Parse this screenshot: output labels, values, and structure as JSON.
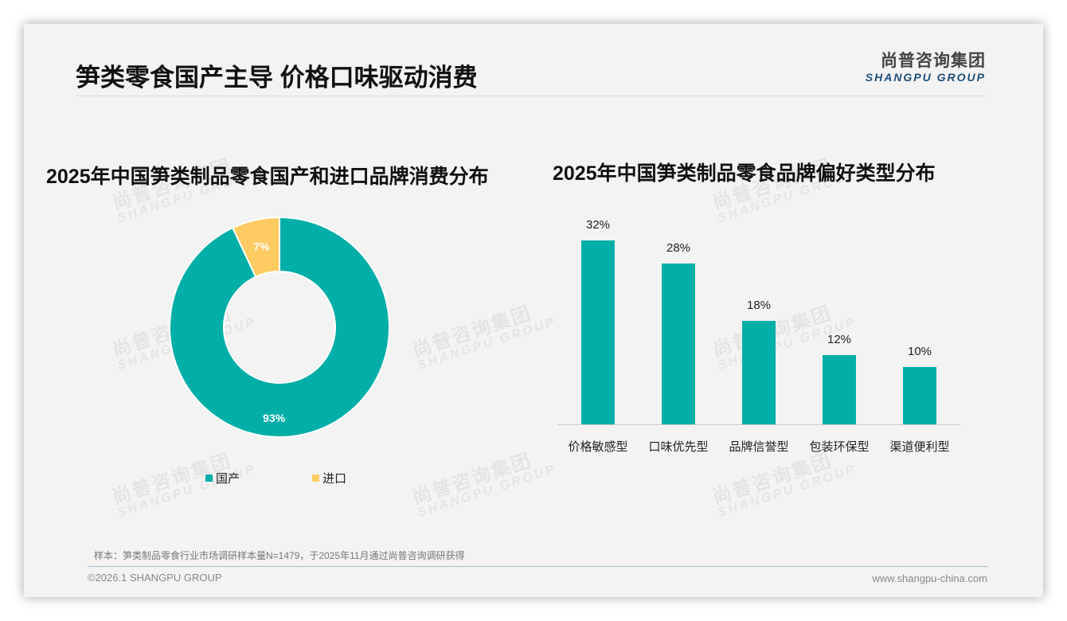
{
  "slide": {
    "title": "笋类零食国产主导 价格口味驱动消费",
    "logo": {
      "cn": "尚普咨询集团",
      "en": "SHANGPU GROUP"
    },
    "watermark": {
      "cn": "尚普咨询集团",
      "en": "SHANGPU GROUP"
    },
    "note": "样本：笋类制品零食行业市场调研样本量N=1479，于2025年11月通过尚普咨询调研获得",
    "footer": {
      "left": "©2026.1 SHANGPU GROUP",
      "right": "www.shangpu-china.com"
    },
    "colors": {
      "teal": "#02aea8",
      "yellow": "#fecb62",
      "logo_blue": "#1d4e7a"
    }
  },
  "chart_data": [
    {
      "type": "pie",
      "style": "donut",
      "title": "2025年中国笋类制品零食国产和进口品牌消费分布",
      "categories": [
        "国产",
        "进口"
      ],
      "values": [
        93,
        7
      ],
      "labels": [
        "93%",
        "7%"
      ],
      "colors": [
        "#02aea8",
        "#fecb62"
      ],
      "legend_position": "bottom"
    },
    {
      "type": "bar",
      "title": "2025年中国笋类制品零食品牌偏好类型分布",
      "categories": [
        "价格敏感型",
        "口味优先型",
        "品牌信誉型",
        "包装环保型",
        "渠道便利型"
      ],
      "values": [
        32,
        28,
        18,
        12,
        10
      ],
      "labels": [
        "32%",
        "28%",
        "18%",
        "12%",
        "10%"
      ],
      "color": "#02aea8",
      "xlabel": "",
      "ylabel": "",
      "unit": "%",
      "ylim": [
        0,
        35
      ],
      "grid": false,
      "legend": false
    }
  ]
}
